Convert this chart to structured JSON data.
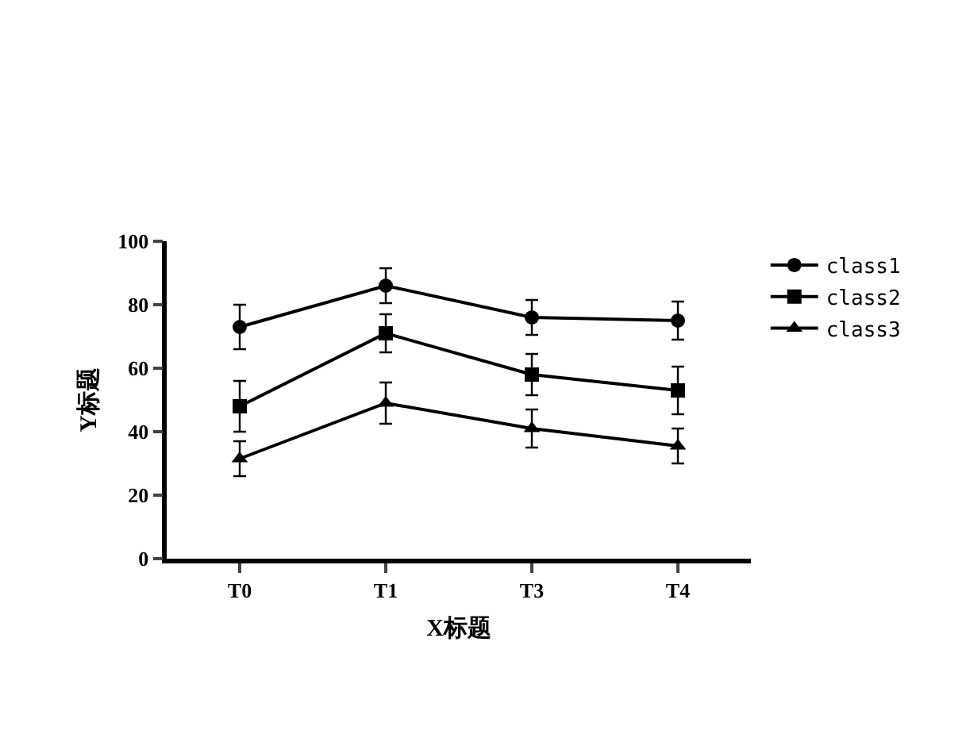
{
  "chart_data": {
    "type": "line",
    "xlabel": "X标题",
    "ylabel": "Y标题",
    "categories": [
      "T0",
      "T1",
      "T3",
      "T4"
    ],
    "ylim": [
      0,
      100
    ],
    "yticks": [
      0,
      20,
      40,
      60,
      80,
      100
    ],
    "grid": false,
    "legend": "top right",
    "line_style": "solid",
    "series": [
      {
        "name": "class1",
        "color": "#000000",
        "marker": "circle",
        "values": [
          73,
          86,
          76,
          75
        ],
        "errors": [
          7,
          5.5,
          5.5,
          6
        ]
      },
      {
        "name": "class2",
        "color": "#000000",
        "marker": "square",
        "values": [
          48,
          71,
          58,
          53
        ],
        "errors": [
          8,
          6,
          6.5,
          7.5
        ]
      },
      {
        "name": "class3",
        "color": "#000000",
        "marker": "triangle",
        "values": [
          31.5,
          49,
          41,
          35.5
        ],
        "errors": [
          5.5,
          6.5,
          6,
          5.5
        ]
      }
    ]
  }
}
